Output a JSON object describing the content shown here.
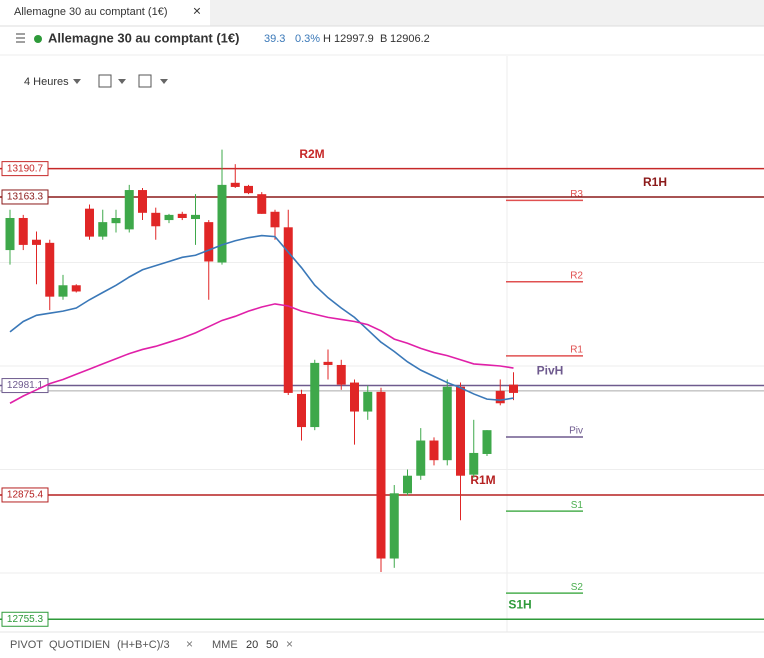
{
  "tab": {
    "title": "Allemagne 30 au comptant (1€)",
    "close": "×"
  },
  "header": {
    "name": "Allemagne 30 au comptant (1€)",
    "change": 39.3,
    "change_pct": "0.3%",
    "high_label": "H",
    "high": 12997.9,
    "low_label": "B",
    "low": 12906.2
  },
  "toolbar": {
    "interval": "4 Heures"
  },
  "footer": {
    "pivot": "PIVOT",
    "pivot_period": "QUOTIDIEN",
    "pivot_formula": "(H+B+C)/3",
    "close": "×",
    "ma": "MME",
    "ma_close": "×"
  },
  "chart_data": {
    "type": "candlestick",
    "ylim": [
      12743,
      13257
    ],
    "gridlines": [
      13100,
      13000,
      12900,
      12800
    ],
    "up_color": "#3ea84a",
    "down_color": "#e02626",
    "open": [
      13112,
      13143,
      13122,
      13119,
      13067,
      13078,
      13152,
      13125,
      13138,
      13132,
      13170,
      13148,
      13141,
      13147,
      13142,
      13139,
      13100,
      13177,
      13174,
      13166,
      13149,
      13134,
      12973,
      12941,
      13004,
      13001,
      12984,
      12956,
      12975,
      12814,
      12877,
      12894,
      12928,
      12909,
      12980,
      12895,
      12915,
      12976,
      12982
    ],
    "high": [
      13151,
      13146,
      13130,
      13122,
      13088,
      13079,
      13156,
      13151,
      13151,
      13175,
      13172,
      13153,
      13147,
      13149,
      13166,
      13141,
      13209,
      13195,
      13175,
      13168,
      13151,
      13151,
      12977,
      13006,
      13016,
      13006,
      12987,
      12981,
      12979,
      12885,
      12900,
      12940,
      12931,
      12987,
      12984,
      12948,
      12938,
      12987,
      12994
    ],
    "low": [
      13098,
      13112,
      13079,
      13054,
      13064,
      13071,
      13122,
      13122,
      13129,
      13129,
      13141,
      13122,
      13138,
      13141,
      13117,
      13064,
      13098,
      13172,
      13166,
      13147,
      13122,
      12972,
      12928,
      12938,
      12987,
      12977,
      12924,
      12948,
      12801,
      12805,
      12875,
      12890,
      12904,
      12904,
      12851,
      12892,
      12913,
      12962,
      12967
    ],
    "close": [
      13143,
      13117,
      13117,
      13067,
      13078,
      13072,
      13125,
      13139,
      13143,
      13170,
      13148,
      13135,
      13146,
      13143,
      13146,
      13101,
      13175,
      13173,
      13167,
      13147,
      13134,
      12974,
      12941,
      13003,
      13001,
      12982,
      12956,
      12975,
      12814,
      12877,
      12894,
      12928,
      12909,
      12980,
      12894,
      12916,
      12938,
      12964,
      12974
    ],
    "series": [
      {
        "name": "20",
        "color": "#3a78b8",
        "values": [
          13033,
          13043,
          13049,
          13051,
          13053,
          13056,
          13064,
          13071,
          13078,
          13086,
          13093,
          13097,
          13101,
          13105,
          13107,
          13112,
          13117,
          13121,
          13124,
          13126,
          13125,
          13110,
          13095,
          13078,
          13066,
          13056,
          13047,
          13035,
          13023,
          13014,
          13004,
          12996,
          12990,
          12984,
          12979,
          12973,
          12968,
          12967,
          12969
        ]
      },
      {
        "name": "50",
        "color": "#e020a8",
        "values": [
          12964,
          12971,
          12977,
          12983,
          12987,
          12992,
          12997,
          13002,
          13007,
          13012,
          13016,
          13019,
          13023,
          13027,
          13032,
          13038,
          13044,
          13048,
          13053,
          13057,
          13060,
          13058,
          13053,
          13050,
          13047,
          13045,
          13043,
          13040,
          13034,
          13026,
          13022,
          13017,
          13013,
          13010,
          13006,
          13002,
          13001,
          13000,
          12998
        ]
      }
    ],
    "last_price": 12976,
    "levels": [
      {
        "name": "R2M",
        "value": 13190.7,
        "color": "#c62828"
      },
      {
        "name": "R1H",
        "value": 13163.3,
        "color": "#8b1a1a"
      },
      {
        "name": "PivH",
        "value": 12981.1,
        "color": "#6e5a8e"
      },
      {
        "name": "R1M",
        "value": 12875.4,
        "color": "#b52020"
      },
      {
        "name": "S1H",
        "value": 12755.3,
        "color": "#2e9a3a"
      }
    ],
    "pivots": [
      {
        "name": "R3",
        "value": 13160,
        "color": "#e05050"
      },
      {
        "name": "R2",
        "value": 13081.4,
        "color": "#e05050"
      },
      {
        "name": "R1",
        "value": 13009.8,
        "color": "#e05050"
      },
      {
        "name": "Piv",
        "value": 12931.4,
        "color": "#6e5a8e"
      },
      {
        "name": "S1",
        "value": 12859.8,
        "color": "#4caf50"
      },
      {
        "name": "S2",
        "value": 12780.5,
        "color": "#4caf50"
      }
    ]
  }
}
